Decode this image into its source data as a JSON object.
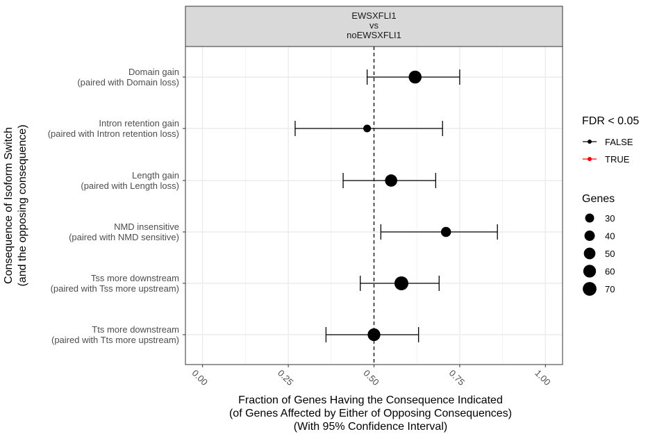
{
  "chart_data": {
    "type": "scatter",
    "facet_label": [
      "EWSXFLI1",
      "vs",
      "noEWSXFLI1"
    ],
    "xlabel": [
      "Fraction of Genes Having the Consequence Indicated",
      "(of Genes Affected by Either of Opposing Consequences)",
      "(With 95% Confidence Interval)"
    ],
    "ylabel": [
      "Consequence of Isoform Switch",
      "(and the opposing consequence)"
    ],
    "xlim": [
      -0.05,
      1.05
    ],
    "x_ticks": [
      0,
      0.25,
      0.5,
      0.75,
      1
    ],
    "x_tick_labels": [
      "0.00",
      "0.25",
      "0.50",
      "0.75",
      "1.00"
    ],
    "reference_line_x": 0.5,
    "grid": true,
    "categories": [
      [
        "Domain gain",
        "(paired with Domain loss)"
      ],
      [
        "Intron retention gain",
        "(paired with Intron retention loss)"
      ],
      [
        "Length gain",
        "(paired with Length loss)"
      ],
      [
        "NMD insensitive",
        "(paired with NMD sensitive)"
      ],
      [
        "Tss more downstream",
        "(paired with Tss more upstream)"
      ],
      [
        "Tts more downstream",
        "(paired with Tts more upstream)"
      ]
    ],
    "points": [
      {
        "value": 0.62,
        "ci_low": 0.48,
        "ci_high": 0.75,
        "genes": 62,
        "fdr_significant": "FALSE"
      },
      {
        "value": 0.48,
        "ci_low": 0.27,
        "ci_high": 0.7,
        "genes": 22,
        "fdr_significant": "FALSE"
      },
      {
        "value": 0.55,
        "ci_low": 0.41,
        "ci_high": 0.68,
        "genes": 56,
        "fdr_significant": "FALSE"
      },
      {
        "value": 0.71,
        "ci_low": 0.52,
        "ci_high": 0.86,
        "genes": 38,
        "fdr_significant": "FALSE"
      },
      {
        "value": 0.58,
        "ci_low": 0.46,
        "ci_high": 0.69,
        "genes": 72,
        "fdr_significant": "FALSE"
      },
      {
        "value": 0.5,
        "ci_low": 0.36,
        "ci_high": 0.63,
        "genes": 60,
        "fdr_significant": "FALSE"
      }
    ],
    "legend_position": "right",
    "legend_color": {
      "title": "FDR < 0.05",
      "entries": [
        {
          "label": "FALSE",
          "color": "#000000"
        },
        {
          "label": "TRUE",
          "color": "#ff0000"
        }
      ]
    },
    "legend_size": {
      "title": "Genes",
      "entries": [
        {
          "label": "30",
          "value": 30
        },
        {
          "label": "40",
          "value": 40
        },
        {
          "label": "50",
          "value": 50
        },
        {
          "label": "60",
          "value": 60
        },
        {
          "label": "70",
          "value": 70
        }
      ]
    }
  }
}
